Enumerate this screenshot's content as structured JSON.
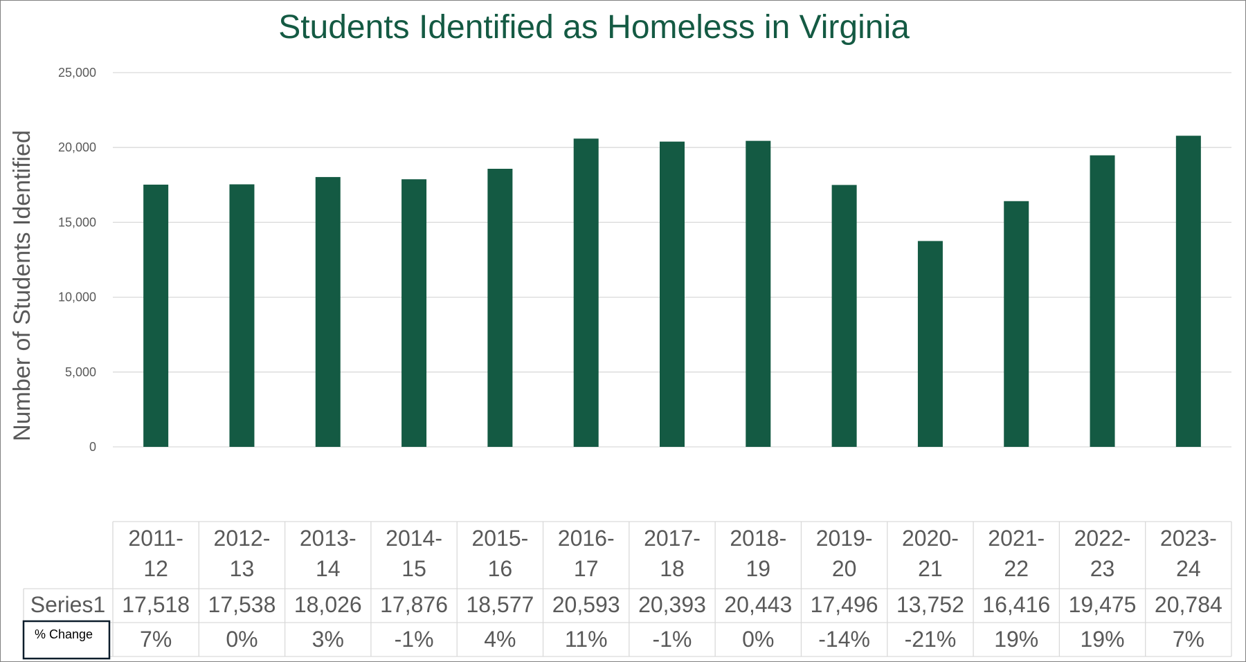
{
  "chart_data": {
    "type": "bar",
    "title": "Students Identified as Homeless in Virginia",
    "ylabel": "Number of Students Identified",
    "xlabel": "",
    "ylim": [
      0,
      25000
    ],
    "yticks": [
      0,
      5000,
      10000,
      15000,
      20000,
      25000
    ],
    "ytick_labels": [
      "0",
      "5,000",
      "10,000",
      "15,000",
      "20,000",
      "25,000"
    ],
    "grid": true,
    "bar_color": "#145a43",
    "categories": [
      [
        "2011-",
        "12"
      ],
      [
        "2012-",
        "13"
      ],
      [
        "2013-",
        "14"
      ],
      [
        "2014-",
        "15"
      ],
      [
        "2015-",
        "16"
      ],
      [
        "2016-",
        "17"
      ],
      [
        "2017-",
        "18"
      ],
      [
        "2018-",
        "19"
      ],
      [
        "2019-",
        "20"
      ],
      [
        "2020-",
        "21"
      ],
      [
        "2021-",
        "22"
      ],
      [
        "2022-",
        "23"
      ],
      [
        "2023-",
        "24"
      ]
    ],
    "series": [
      {
        "name": "Series1",
        "values": [
          17518,
          17538,
          18026,
          17876,
          18577,
          20593,
          20393,
          20443,
          17496,
          13752,
          16416,
          19475,
          20784
        ],
        "value_labels": [
          "17,518",
          "17,538",
          "18,026",
          "17,876",
          "18,577",
          "20,593",
          "20,393",
          "20,443",
          "17,496",
          "13,752",
          "16,416",
          "19,475",
          "20,784"
        ]
      }
    ],
    "data_table": {
      "series_label": "Series1",
      "change_label": "% Change",
      "change_values": [
        "7%",
        "0%",
        "3%",
        "-1%",
        "4%",
        "11%",
        "-1%",
        "0%",
        "-14%",
        "-21%",
        "19%",
        "19%",
        "7%"
      ]
    }
  }
}
